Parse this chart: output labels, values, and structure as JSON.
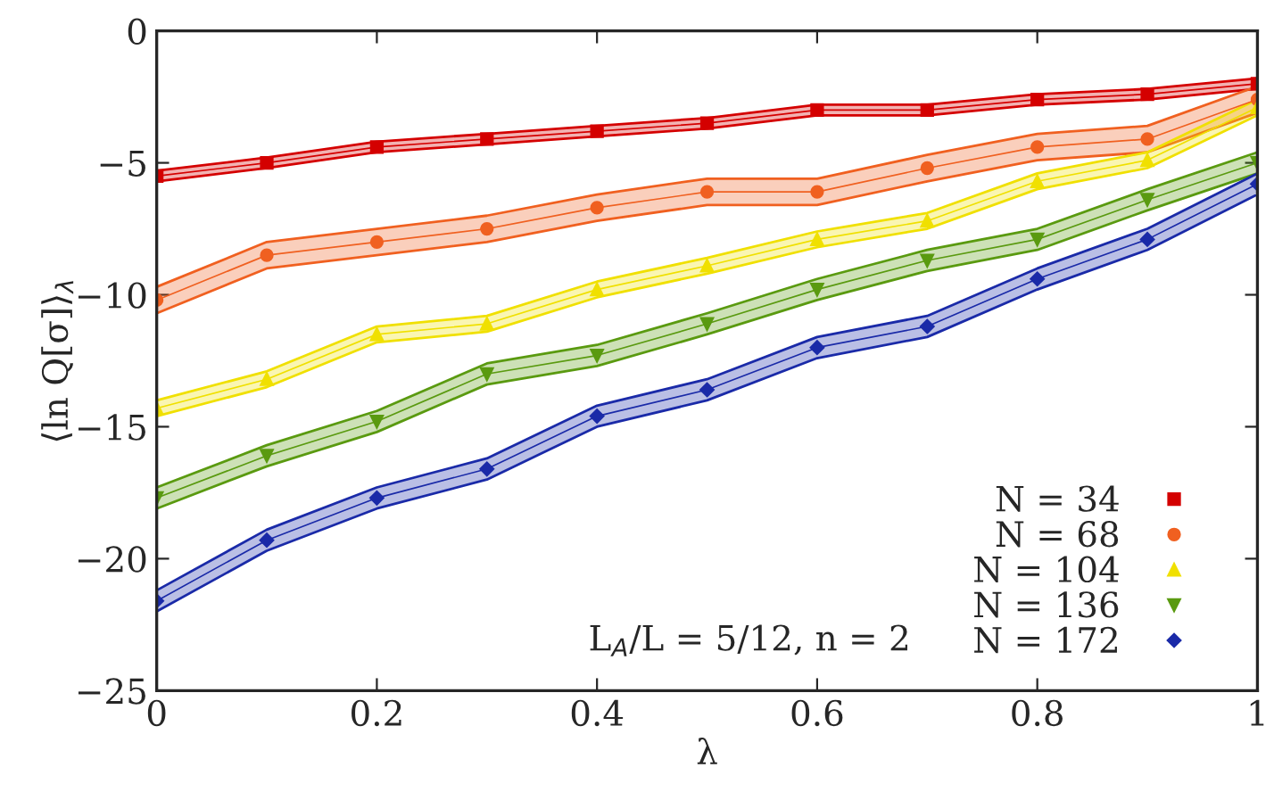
{
  "chart_data": {
    "type": "line",
    "xlabel": "λ",
    "ylabel": "⟨ln Q[σ]⟩$_{λ}$",
    "annotations": [
      "L$_{A}$/L = 5/12, n = 2"
    ],
    "x": [
      0,
      0.1,
      0.2,
      0.3,
      0.4,
      0.5,
      0.6,
      0.7,
      0.8,
      0.9,
      1
    ],
    "series": [
      {
        "name": "N = 34",
        "color": "#d40000",
        "marker": "square",
        "values": [
          -5.5,
          -5.0,
          -4.4,
          -4.1,
          -3.8,
          -3.5,
          -3.0,
          -3.0,
          -2.6,
          -2.4,
          -2.0
        ],
        "lower": [
          -5.7,
          -5.2,
          -4.6,
          -4.3,
          -4.0,
          -3.7,
          -3.2,
          -3.2,
          -2.8,
          -2.6,
          -2.2
        ],
        "upper": [
          -5.3,
          -4.8,
          -4.2,
          -3.9,
          -3.6,
          -3.3,
          -2.8,
          -2.8,
          -2.4,
          -2.2,
          -1.8
        ]
      },
      {
        "name": "N = 68",
        "color": "#f06020",
        "marker": "circle",
        "values": [
          -10.2,
          -8.5,
          -8.0,
          -7.5,
          -6.7,
          -6.1,
          -6.1,
          -5.2,
          -4.4,
          -4.1,
          -2.6
        ],
        "lower": [
          -10.7,
          -9.0,
          -8.5,
          -8.0,
          -7.2,
          -6.6,
          -6.6,
          -5.7,
          -4.9,
          -4.6,
          -3.1
        ],
        "upper": [
          -9.7,
          -8.0,
          -7.5,
          -7.0,
          -6.2,
          -5.6,
          -5.6,
          -4.7,
          -3.9,
          -3.6,
          -2.1
        ]
      },
      {
        "name": "N = 104",
        "color": "#f0e000",
        "marker": "triangle",
        "values": [
          -14.3,
          -13.2,
          -11.5,
          -11.1,
          -9.8,
          -8.9,
          -7.9,
          -7.2,
          -5.7,
          -4.9,
          -2.9
        ],
        "lower": [
          -14.6,
          -13.5,
          -11.8,
          -11.4,
          -10.1,
          -9.2,
          -8.2,
          -7.5,
          -6.0,
          -5.2,
          -3.2
        ],
        "upper": [
          -14.0,
          -12.9,
          -11.2,
          -10.8,
          -9.5,
          -8.6,
          -7.6,
          -6.9,
          -5.4,
          -4.6,
          -2.6
        ]
      },
      {
        "name": "N = 136",
        "color": "#5a9a10",
        "marker": "triangle_down",
        "values": [
          -17.7,
          -16.1,
          -14.8,
          -13.0,
          -12.3,
          -11.1,
          -9.8,
          -8.7,
          -7.9,
          -6.4,
          -5.0
        ],
        "lower": [
          -18.1,
          -16.5,
          -15.2,
          -13.4,
          -12.7,
          -11.5,
          -10.2,
          -9.1,
          -8.3,
          -6.8,
          -5.4
        ],
        "upper": [
          -17.3,
          -15.7,
          -14.4,
          -12.6,
          -11.9,
          -10.7,
          -9.4,
          -8.3,
          -7.5,
          -6.0,
          -4.6
        ]
      },
      {
        "name": "N = 172",
        "color": "#1a2aa8",
        "marker": "diamond",
        "values": [
          -21.6,
          -19.3,
          -17.7,
          -16.6,
          -14.6,
          -13.6,
          -12.0,
          -11.2,
          -9.4,
          -7.9,
          -5.8
        ],
        "lower": [
          -22.0,
          -19.7,
          -18.1,
          -17.0,
          -15.0,
          -14.0,
          -12.4,
          -11.6,
          -9.8,
          -8.3,
          -6.2
        ],
        "upper": [
          -21.2,
          -18.9,
          -17.3,
          -16.2,
          -14.2,
          -13.2,
          -11.6,
          -10.8,
          -9.0,
          -7.5,
          -5.4
        ]
      }
    ],
    "xlim": [
      0,
      1
    ],
    "xticks": [
      0,
      0.2,
      0.4,
      0.6,
      0.8,
      1
    ],
    "ylim": [
      -25,
      0
    ],
    "yticks": [
      {
        "value": -25,
        "label": "−25"
      },
      {
        "value": -20,
        "label": "−20"
      },
      {
        "value": -15,
        "label": "−15"
      },
      {
        "value": -10,
        "label": "−10"
      },
      {
        "value": -5,
        "label": "−5"
      },
      0
    ],
    "grid": false,
    "legend": "bottom right"
  }
}
